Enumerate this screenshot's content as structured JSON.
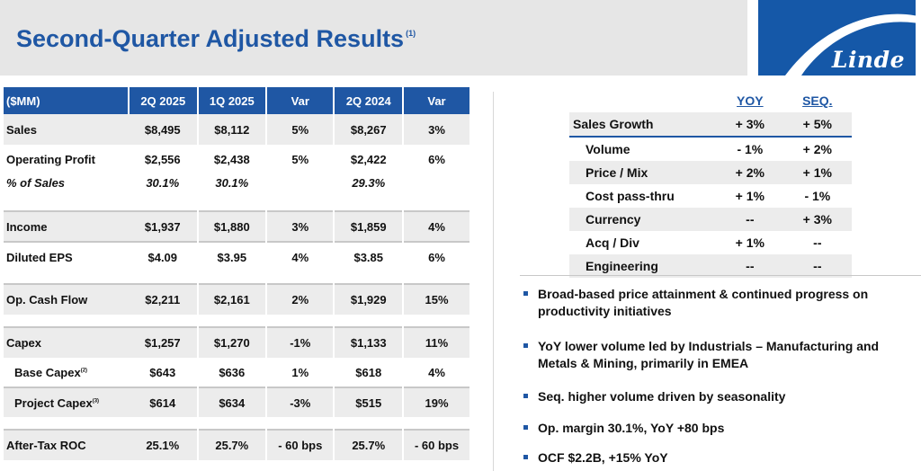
{
  "header": {
    "title": "Second-Quarter Adjusted Results",
    "title_note": "(1)",
    "logo_text": "Linde"
  },
  "left_table": {
    "headers": [
      "($MM)",
      "2Q 2025",
      "1Q 2025",
      "Var",
      "2Q 2024",
      "Var"
    ],
    "rows": [
      {
        "label": "Sales",
        "values": [
          "$8,495",
          "$8,112",
          "5%",
          "$8,267",
          "3%"
        ]
      },
      {
        "label": "Operating Profit",
        "values": [
          "$2,556",
          "$2,438",
          "5%",
          "$2,422",
          "6%"
        ]
      },
      {
        "label": "% of Sales",
        "values": [
          "30.1%",
          "30.1%",
          "",
          "29.3%",
          ""
        ]
      },
      {
        "label": "Income",
        "values": [
          "$1,937",
          "$1,880",
          "3%",
          "$1,859",
          "4%"
        ]
      },
      {
        "label": "Diluted EPS",
        "values": [
          "$4.09",
          "$3.95",
          "4%",
          "$3.85",
          "6%"
        ]
      },
      {
        "label": "Op. Cash Flow",
        "values": [
          "$2,211",
          "$2,161",
          "2%",
          "$1,929",
          "15%"
        ]
      },
      {
        "label": "Capex",
        "values": [
          "$1,257",
          "$1,270",
          "-1%",
          "$1,133",
          "11%"
        ]
      },
      {
        "label": "Base Capex",
        "note": "(2)",
        "values": [
          "$643",
          "$636",
          "1%",
          "$618",
          "4%"
        ]
      },
      {
        "label": "Project Capex",
        "note": "(3)",
        "values": [
          "$614",
          "$634",
          "-3%",
          "$515",
          "19%"
        ]
      },
      {
        "label": "After-Tax ROC",
        "values": [
          "25.1%",
          "25.7%",
          "- 60 bps",
          "25.7%",
          "- 60 bps"
        ]
      }
    ]
  },
  "right_table": {
    "headers": [
      "YOY",
      "SEQ."
    ],
    "rows": [
      {
        "label": "Sales Growth",
        "yoy": "+ 3%",
        "seq": "+ 5%"
      },
      {
        "label": "Volume",
        "yoy": "- 1%",
        "seq": "+ 2%"
      },
      {
        "label": "Price / Mix",
        "yoy": "+ 2%",
        "seq": "+ 1%"
      },
      {
        "label": "Cost pass-thru",
        "yoy": "+ 1%",
        "seq": "- 1%"
      },
      {
        "label": "Currency",
        "yoy": "--",
        "seq": "+ 3%"
      },
      {
        "label": "Acq / Div",
        "yoy": "+ 1%",
        "seq": "--"
      },
      {
        "label": "Engineering",
        "yoy": "--",
        "seq": "--"
      }
    ]
  },
  "bullets": [
    "Broad-based price attainment & continued progress on productivity initiatives",
    "YoY lower volume led by Industrials – Manufacturing and Metals & Mining, primarily in EMEA",
    "Seq. higher volume driven by seasonality",
    "Op. margin 30.1%, YoY +80 bps",
    "OCF $2.2B, +15% YoY"
  ],
  "colors": {
    "brand_blue": "#1f57a4",
    "logo_blue": "#1558a8",
    "title_bar": "#e6e6e6",
    "row_shade": "#ececec"
  },
  "icons": [
    "linde-logo-swoosh-icon"
  ]
}
